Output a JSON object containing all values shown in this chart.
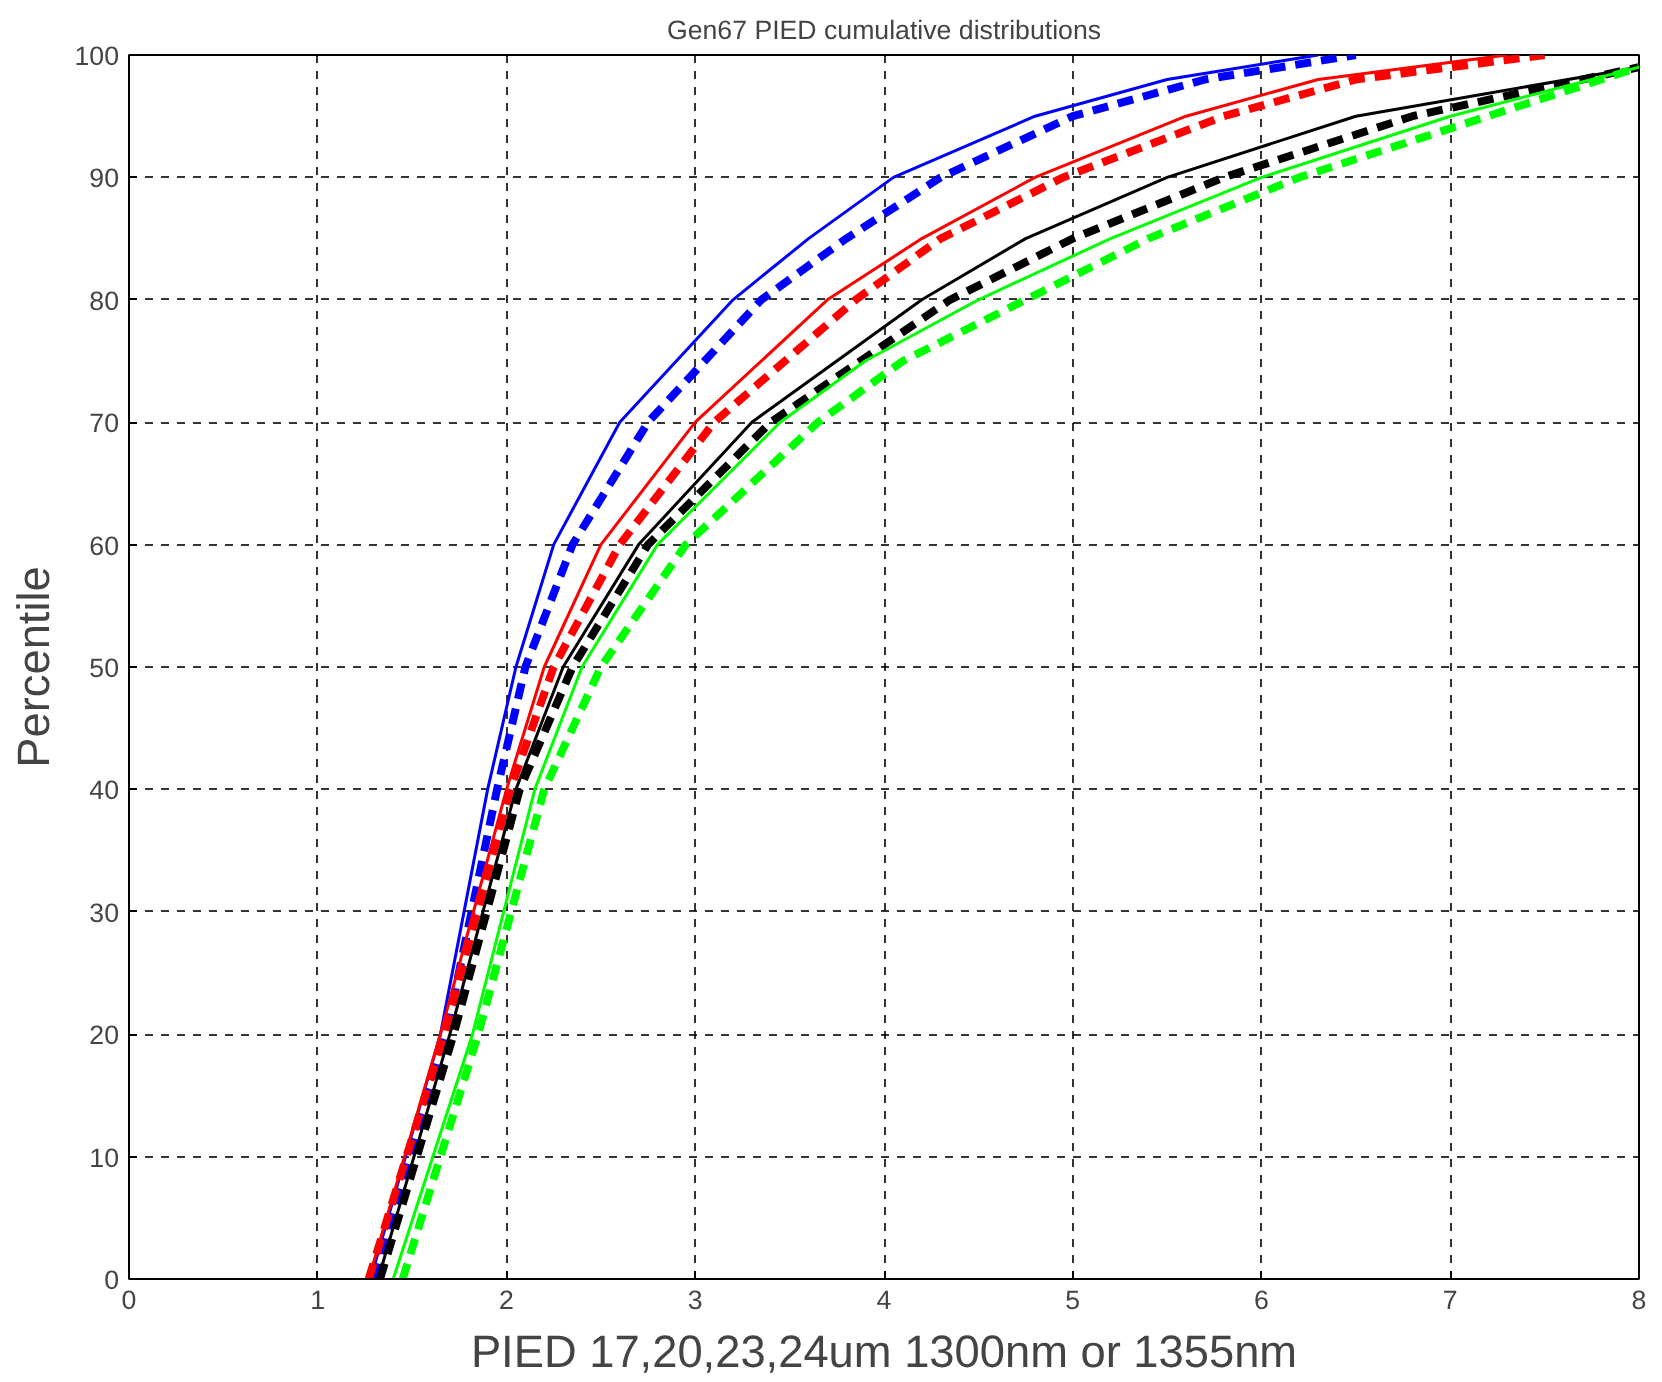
{
  "chart_data": {
    "type": "line",
    "title": "Gen67 PIED cumulative distributions",
    "xlabel": "PIED 17,20,23,24um 1300nm or 1355nm",
    "ylabel": "Percentile",
    "xlim": [
      0,
      8
    ],
    "ylim": [
      0,
      100
    ],
    "xticks": [
      0,
      1,
      2,
      3,
      4,
      5,
      6,
      7,
      8
    ],
    "yticks": [
      0,
      10,
      20,
      30,
      40,
      50,
      60,
      70,
      80,
      90,
      100
    ],
    "grid": true,
    "series": [
      {
        "color": "#0000ff",
        "line_style": "solid",
        "x": [
          1.28,
          1.65,
          1.9,
          2.05,
          2.25,
          2.6,
          2.9,
          3.2,
          3.6,
          4.05,
          4.8,
          5.5,
          6.3
        ],
        "values": [
          0,
          20,
          40,
          50,
          60,
          70,
          75,
          80,
          85,
          90,
          95,
          98,
          100
        ]
      },
      {
        "color": "#0000ff",
        "line_style": "dashed",
        "x": [
          1.3,
          1.68,
          1.95,
          2.1,
          2.35,
          2.75,
          3.35,
          3.8,
          4.3,
          5.0,
          5.7,
          6.5
        ],
        "values": [
          0,
          20,
          40,
          50,
          60,
          70,
          80,
          85,
          90,
          95,
          98,
          100
        ]
      },
      {
        "color": "#ff0000",
        "line_style": "solid",
        "x": [
          1.27,
          1.65,
          2.0,
          2.2,
          2.5,
          3.0,
          3.7,
          4.2,
          4.8,
          5.6,
          6.3,
          7.3
        ],
        "values": [
          0,
          20,
          40,
          50,
          60,
          70,
          80,
          85,
          90,
          95,
          98,
          100
        ]
      },
      {
        "color": "#ff0000",
        "line_style": "dashed",
        "x": [
          1.27,
          1.67,
          2.02,
          2.25,
          2.6,
          3.1,
          3.85,
          4.3,
          4.95,
          5.8,
          6.5,
          7.5
        ],
        "values": [
          0,
          20,
          40,
          50,
          60,
          70,
          80,
          85,
          90,
          95,
          98,
          100
        ]
      },
      {
        "color": "#000000",
        "line_style": "solid",
        "x": [
          1.32,
          1.7,
          2.05,
          2.3,
          2.7,
          3.3,
          4.2,
          4.75,
          5.5,
          6.5,
          8
        ],
        "values": [
          0,
          20,
          40,
          50,
          60,
          70,
          80,
          85,
          90,
          95,
          99
        ]
      },
      {
        "color": "#000000",
        "line_style": "dashed",
        "x": [
          1.33,
          1.72,
          2.07,
          2.35,
          2.75,
          3.4,
          4.35,
          5.0,
          5.8,
          6.8,
          8
        ],
        "values": [
          0,
          20,
          40,
          50,
          60,
          70,
          80,
          85,
          90,
          95,
          99
        ]
      },
      {
        "color": "#00ff00",
        "line_style": "solid",
        "x": [
          1.4,
          1.82,
          2.15,
          2.4,
          2.8,
          3.45,
          3.9,
          4.5,
          5.2,
          6.0,
          7.0,
          8
        ],
        "values": [
          0,
          20,
          40,
          50,
          60,
          70,
          75,
          80,
          85,
          90,
          95,
          99
        ]
      },
      {
        "color": "#00ff00",
        "line_style": "dashed",
        "x": [
          1.45,
          1.85,
          2.2,
          2.5,
          2.95,
          3.65,
          4.1,
          4.75,
          5.4,
          6.2,
          7.2,
          8
        ],
        "values": [
          0,
          20,
          40,
          50,
          60,
          70,
          75,
          80,
          85,
          90,
          95,
          99
        ]
      }
    ]
  }
}
